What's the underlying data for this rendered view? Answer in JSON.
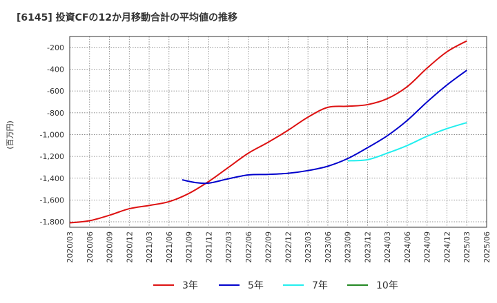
{
  "chart_data": {
    "type": "line",
    "title": "[6145]  投資CFの12か月移動合計の平均値の推移",
    "ylabel": "(百万円)",
    "xlabel": "",
    "ylim": [
      -1850,
      -100
    ],
    "yticks": [
      -200,
      -400,
      -600,
      -800,
      -1000,
      -1200,
      -1400,
      -1600,
      -1800
    ],
    "ytick_labels": [
      "-200",
      "-400",
      "-600",
      "-800",
      "-1,000",
      "-1,200",
      "-1,400",
      "-1,600",
      "-1,800"
    ],
    "xticks": [
      "2020/03",
      "2020/06",
      "2020/09",
      "2020/12",
      "2021/03",
      "2021/06",
      "2021/09",
      "2021/12",
      "2022/03",
      "2022/06",
      "2022/09",
      "2022/12",
      "2023/03",
      "2023/06",
      "2023/09",
      "2023/12",
      "2024/03",
      "2024/06",
      "2024/09",
      "2024/12",
      "2025/03",
      "2025/06"
    ],
    "grid": true,
    "legend_position": "bottom",
    "series": [
      {
        "name": "3年",
        "color": "#dd1111",
        "points": [
          [
            "2020/03",
            -1810
          ],
          [
            "2020/06",
            -1790
          ],
          [
            "2020/09",
            -1740
          ],
          [
            "2020/12",
            -1680
          ],
          [
            "2021/03",
            -1650
          ],
          [
            "2021/06",
            -1615
          ],
          [
            "2021/09",
            -1540
          ],
          [
            "2021/12",
            -1430
          ],
          [
            "2022/03",
            -1300
          ],
          [
            "2022/06",
            -1170
          ],
          [
            "2022/09",
            -1070
          ],
          [
            "2022/12",
            -960
          ],
          [
            "2023/03",
            -840
          ],
          [
            "2023/06",
            -750
          ],
          [
            "2023/09",
            -740
          ],
          [
            "2023/12",
            -725
          ],
          [
            "2024/03",
            -670
          ],
          [
            "2024/06",
            -560
          ],
          [
            "2024/09",
            -390
          ],
          [
            "2024/12",
            -240
          ],
          [
            "2025/03",
            -140
          ]
        ]
      },
      {
        "name": "5年",
        "color": "#0000cc",
        "points": [
          [
            "2021/08",
            -1415
          ],
          [
            "2021/10",
            -1440
          ],
          [
            "2021/12",
            -1445
          ],
          [
            "2022/03",
            -1405
          ],
          [
            "2022/06",
            -1370
          ],
          [
            "2022/09",
            -1365
          ],
          [
            "2022/12",
            -1355
          ],
          [
            "2023/03",
            -1330
          ],
          [
            "2023/06",
            -1290
          ],
          [
            "2023/09",
            -1220
          ],
          [
            "2023/12",
            -1120
          ],
          [
            "2024/03",
            -1010
          ],
          [
            "2024/06",
            -870
          ],
          [
            "2024/09",
            -700
          ],
          [
            "2024/12",
            -545
          ],
          [
            "2025/03",
            -410
          ]
        ]
      },
      {
        "name": "7年",
        "color": "#22eeee",
        "points": [
          [
            "2023/09",
            -1240
          ],
          [
            "2023/12",
            -1230
          ],
          [
            "2024/03",
            -1170
          ],
          [
            "2024/06",
            -1100
          ],
          [
            "2024/09",
            -1015
          ],
          [
            "2024/12",
            -945
          ],
          [
            "2025/03",
            -890
          ]
        ]
      },
      {
        "name": "10年",
        "color": "#228822",
        "points": []
      }
    ]
  }
}
